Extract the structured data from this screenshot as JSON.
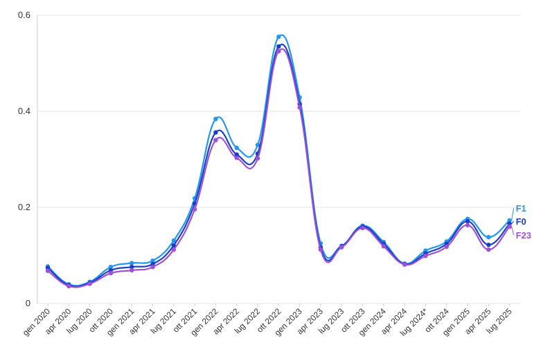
{
  "chart_data": {
    "type": "line",
    "categories": [
      "gen 2020",
      "apr 2020",
      "lug 2020",
      "ott 2020",
      "gen 2021",
      "apr 2021",
      "lug 2021",
      "ott 2021",
      "gen 2022",
      "apr 2022",
      "lug 2022",
      "ott 2022",
      "gen 2023",
      "apr 2023",
      "lug 2023",
      "ott 2023",
      "gen 2024",
      "apr 2024",
      "lug 2024*",
      "ott 2024",
      "gen 2025",
      "apr 2025",
      "lug 2025"
    ],
    "ylim": [
      0,
      0.6
    ],
    "yticks": [
      {
        "value": 0,
        "label": "0"
      },
      {
        "value": 0.2,
        "label": "0.2"
      },
      {
        "value": 0.4,
        "label": "0.4"
      },
      {
        "value": 0.6,
        "label": "0.6"
      }
    ],
    "grid": true,
    "series": [
      {
        "name": "F1",
        "color": "#2196f3",
        "values": [
          0.077,
          0.04,
          0.045,
          0.076,
          0.084,
          0.089,
          0.131,
          0.219,
          0.384,
          0.324,
          0.33,
          0.555,
          0.429,
          0.125,
          0.12,
          0.162,
          0.128,
          0.083,
          0.11,
          0.129,
          0.176,
          0.138,
          0.173
        ]
      },
      {
        "name": "F0",
        "color": "#1a3fc4",
        "values": [
          0.074,
          0.038,
          0.043,
          0.069,
          0.076,
          0.082,
          0.121,
          0.208,
          0.356,
          0.31,
          0.312,
          0.535,
          0.415,
          0.117,
          0.119,
          0.16,
          0.124,
          0.082,
          0.104,
          0.124,
          0.171,
          0.122,
          0.166
        ]
      },
      {
        "name": "F23",
        "color": "#a050d8",
        "values": [
          0.068,
          0.036,
          0.041,
          0.063,
          0.069,
          0.076,
          0.112,
          0.196,
          0.34,
          0.303,
          0.302,
          0.525,
          0.408,
          0.112,
          0.117,
          0.157,
          0.119,
          0.081,
          0.099,
          0.118,
          0.163,
          0.112,
          0.16
        ]
      }
    ]
  }
}
